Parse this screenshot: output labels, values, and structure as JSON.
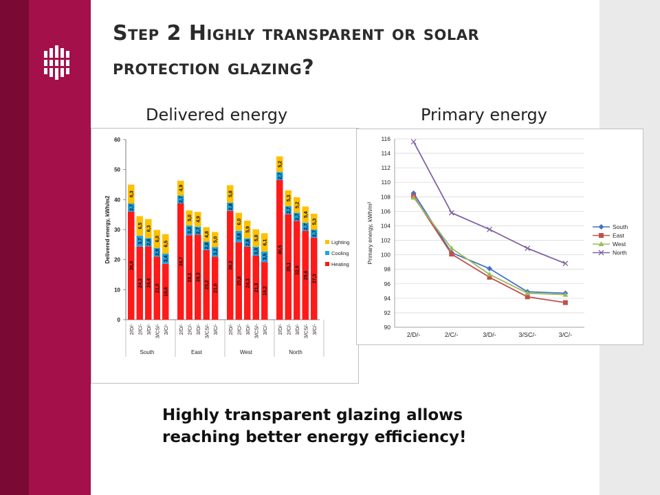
{
  "slide": {
    "title": "Step 2 Highly transparent or solar protection glazing?",
    "left_heading": "Delivered energy",
    "right_heading": "Primary energy",
    "conclusion_line1": "Highly transparent glazing allows",
    "conclusion_line2": "reaching better energy efficiency!"
  },
  "colors": {
    "brand_dark": "#7a0a33",
    "brand": "#a3104a",
    "heating": "#ff1a1a",
    "cooling": "#1fa3e0",
    "lighting": "#ffc000",
    "south": "#4472c4",
    "east": "#c0504d",
    "west": "#9bbb59",
    "north": "#8064a2"
  },
  "chart_data": [
    {
      "type": "bar",
      "stacked": true,
      "ylabel": "Delivered energy, kWh/m2",
      "ylim": [
        0,
        60
      ],
      "yticks": [
        0,
        10,
        20,
        30,
        40,
        50,
        60
      ],
      "groups": [
        {
          "name": "South",
          "categories": [
            "2/D/-",
            "2/C/-",
            "3/D/-",
            "3/CS/-",
            "3/C/-"
          ]
        },
        {
          "name": "East",
          "categories": [
            "2/D/-",
            "2/C/-",
            "3/D/-",
            "3/CS/-",
            "3/C/-"
          ]
        },
        {
          "name": "West",
          "categories": [
            "2/D/-",
            "2/C/-",
            "3/D/-",
            "3/CS/-",
            "3/C/-"
          ]
        },
        {
          "name": "North",
          "categories": [
            "2/D/-",
            "2/C/-",
            "3/D/-",
            "3/CS/-",
            "3/C/-"
          ]
        }
      ],
      "series": [
        {
          "name": "Heating",
          "values": [
            36.0,
            24.3,
            24.4,
            21.0,
            18.6,
            38.7,
            28.1,
            28.3,
            23.2,
            21.0,
            36.2,
            25.8,
            24.3,
            21.3,
            19.2,
            46.5,
            35.1,
            32.9,
            29.6,
            27.3
          ]
        },
        {
          "name": "Cooling",
          "values": [
            2.7,
            3.7,
            2.8,
            2.9,
            3.4,
            2.7,
            3.3,
            2.7,
            2.8,
            3.2,
            2.8,
            3.8,
            2.8,
            3.0,
            3.5,
            2.7,
            2.7,
            2.7,
            2.7,
            2.7
          ]
        },
        {
          "name": "Lighting",
          "values": [
            6.3,
            6.5,
            6.3,
            6.0,
            6.5,
            4.9,
            5.0,
            4.9,
            4.8,
            5.0,
            5.8,
            6.0,
            5.9,
            5.8,
            6.1,
            5.2,
            5.3,
            5.2,
            5.4,
            5.3
          ]
        }
      ],
      "legend": "right"
    },
    {
      "type": "line",
      "ylabel": "Primary energy, kWh/m²",
      "ylim": [
        90,
        116
      ],
      "yticks": [
        90,
        92,
        94,
        96,
        98,
        100,
        102,
        104,
        106,
        108,
        110,
        112,
        114,
        116
      ],
      "categories": [
        "2/D/-",
        "2/C/-",
        "3/D/-",
        "3/SC/-",
        "3/C/-"
      ],
      "series": [
        {
          "name": "South",
          "values": [
            108.5,
            100.3,
            98.1,
            94.9,
            94.7
          ]
        },
        {
          "name": "East",
          "values": [
            108.1,
            100.1,
            96.9,
            94.2,
            93.4
          ]
        },
        {
          "name": "West",
          "values": [
            107.9,
            100.9,
            97.3,
            94.7,
            94.5
          ]
        },
        {
          "name": "North",
          "values": [
            115.6,
            105.8,
            103.5,
            100.9,
            98.8
          ]
        }
      ],
      "legend": "right",
      "grid": true
    }
  ]
}
